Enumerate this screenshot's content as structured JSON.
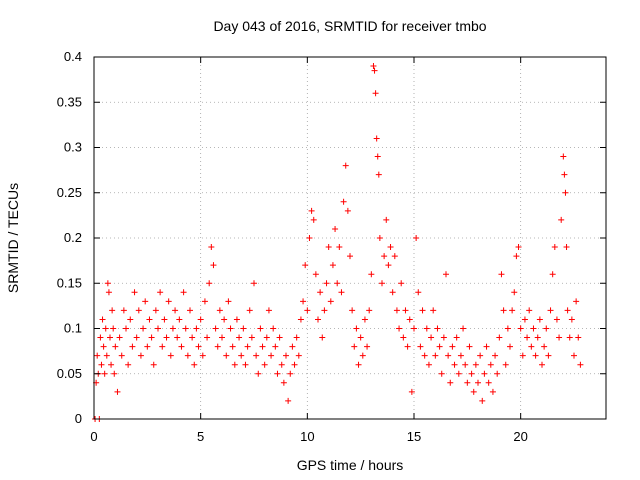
{
  "chart_data": {
    "type": "scatter",
    "title": "Day 043 of 2016, SRMTID for receiver tmbo",
    "xlabel": "GPS time / hours",
    "ylabel": "SRMTID / TECUs",
    "xlim": [
      0,
      24
    ],
    "ylim": [
      0,
      0.4
    ],
    "x_ticks": [
      0,
      5,
      10,
      15,
      20
    ],
    "x_tick_labels": [
      "0",
      "5",
      "10",
      "15",
      "20"
    ],
    "y_ticks": [
      0,
      0.05,
      0.1,
      0.15,
      0.2,
      0.25,
      0.3,
      0.35,
      0.4
    ],
    "y_tick_labels": [
      "0",
      "0.05",
      "0.1",
      "0.15",
      "0.2",
      "0.25",
      "0.3",
      "0.35",
      "0.4"
    ],
    "grid": true,
    "marker": "+",
    "color": "#ff0000",
    "series": [
      {
        "name": "SRMTID",
        "points": [
          [
            0.05,
            0.0
          ],
          [
            0.1,
            0.04
          ],
          [
            0.15,
            0.07
          ],
          [
            0.2,
            0.05
          ],
          [
            0.25,
            0.0
          ],
          [
            0.3,
            0.09
          ],
          [
            0.35,
            0.06
          ],
          [
            0.4,
            0.11
          ],
          [
            0.45,
            0.08
          ],
          [
            0.5,
            0.05
          ],
          [
            0.55,
            0.1
          ],
          [
            0.6,
            0.07
          ],
          [
            0.65,
            0.15
          ],
          [
            0.7,
            0.14
          ],
          [
            0.75,
            0.09
          ],
          [
            0.8,
            0.06
          ],
          [
            0.85,
            0.12
          ],
          [
            0.9,
            0.1
          ],
          [
            0.95,
            0.05
          ],
          [
            1.0,
            0.08
          ],
          [
            1.1,
            0.03
          ],
          [
            1.2,
            0.09
          ],
          [
            1.3,
            0.07
          ],
          [
            1.4,
            0.12
          ],
          [
            1.5,
            0.1
          ],
          [
            1.6,
            0.06
          ],
          [
            1.7,
            0.11
          ],
          [
            1.8,
            0.08
          ],
          [
            1.9,
            0.14
          ],
          [
            2.0,
            0.09
          ],
          [
            2.1,
            0.12
          ],
          [
            2.2,
            0.07
          ],
          [
            2.3,
            0.1
          ],
          [
            2.4,
            0.13
          ],
          [
            2.5,
            0.08
          ],
          [
            2.6,
            0.11
          ],
          [
            2.7,
            0.09
          ],
          [
            2.8,
            0.06
          ],
          [
            2.9,
            0.12
          ],
          [
            3.0,
            0.1
          ],
          [
            3.1,
            0.14
          ],
          [
            3.2,
            0.08
          ],
          [
            3.3,
            0.11
          ],
          [
            3.4,
            0.09
          ],
          [
            3.5,
            0.13
          ],
          [
            3.6,
            0.07
          ],
          [
            3.7,
            0.1
          ],
          [
            3.8,
            0.12
          ],
          [
            3.9,
            0.09
          ],
          [
            4.0,
            0.11
          ],
          [
            4.1,
            0.08
          ],
          [
            4.2,
            0.14
          ],
          [
            4.3,
            0.1
          ],
          [
            4.4,
            0.07
          ],
          [
            4.5,
            0.12
          ],
          [
            4.6,
            0.09
          ],
          [
            4.7,
            0.06
          ],
          [
            4.8,
            0.1
          ],
          [
            4.9,
            0.08
          ],
          [
            5.0,
            0.11
          ],
          [
            5.1,
            0.07
          ],
          [
            5.2,
            0.13
          ],
          [
            5.3,
            0.09
          ],
          [
            5.4,
            0.15
          ],
          [
            5.5,
            0.19
          ],
          [
            5.6,
            0.17
          ],
          [
            5.7,
            0.1
          ],
          [
            5.8,
            0.08
          ],
          [
            5.9,
            0.12
          ],
          [
            6.0,
            0.09
          ],
          [
            6.1,
            0.11
          ],
          [
            6.2,
            0.07
          ],
          [
            6.3,
            0.13
          ],
          [
            6.4,
            0.1
          ],
          [
            6.5,
            0.08
          ],
          [
            6.6,
            0.06
          ],
          [
            6.7,
            0.11
          ],
          [
            6.8,
            0.09
          ],
          [
            6.9,
            0.07
          ],
          [
            7.0,
            0.1
          ],
          [
            7.1,
            0.06
          ],
          [
            7.2,
            0.08
          ],
          [
            7.3,
            0.12
          ],
          [
            7.4,
            0.09
          ],
          [
            7.5,
            0.15
          ],
          [
            7.6,
            0.07
          ],
          [
            7.7,
            0.05
          ],
          [
            7.8,
            0.1
          ],
          [
            7.9,
            0.08
          ],
          [
            8.0,
            0.06
          ],
          [
            8.1,
            0.09
          ],
          [
            8.2,
            0.12
          ],
          [
            8.3,
            0.07
          ],
          [
            8.4,
            0.1
          ],
          [
            8.5,
            0.08
          ],
          [
            8.6,
            0.05
          ],
          [
            8.7,
            0.09
          ],
          [
            8.8,
            0.06
          ],
          [
            8.9,
            0.04
          ],
          [
            9.0,
            0.07
          ],
          [
            9.1,
            0.02
          ],
          [
            9.2,
            0.05
          ],
          [
            9.3,
            0.08
          ],
          [
            9.4,
            0.06
          ],
          [
            9.5,
            0.09
          ],
          [
            9.6,
            0.07
          ],
          [
            9.7,
            0.11
          ],
          [
            9.8,
            0.13
          ],
          [
            9.9,
            0.17
          ],
          [
            10.0,
            0.12
          ],
          [
            10.1,
            0.2
          ],
          [
            10.2,
            0.23
          ],
          [
            10.3,
            0.22
          ],
          [
            10.4,
            0.16
          ],
          [
            10.5,
            0.11
          ],
          [
            10.6,
            0.14
          ],
          [
            10.7,
            0.09
          ],
          [
            10.8,
            0.12
          ],
          [
            10.9,
            0.15
          ],
          [
            11.0,
            0.19
          ],
          [
            11.1,
            0.13
          ],
          [
            11.2,
            0.17
          ],
          [
            11.3,
            0.21
          ],
          [
            11.4,
            0.15
          ],
          [
            11.5,
            0.19
          ],
          [
            11.6,
            0.14
          ],
          [
            11.7,
            0.24
          ],
          [
            11.8,
            0.28
          ],
          [
            11.9,
            0.23
          ],
          [
            12.0,
            0.18
          ],
          [
            12.1,
            0.12
          ],
          [
            12.2,
            0.08
          ],
          [
            12.3,
            0.1
          ],
          [
            12.4,
            0.06
          ],
          [
            12.5,
            0.09
          ],
          [
            12.6,
            0.07
          ],
          [
            12.7,
            0.11
          ],
          [
            12.8,
            0.08
          ],
          [
            12.9,
            0.12
          ],
          [
            13.0,
            0.16
          ],
          [
            13.1,
            0.39
          ],
          [
            13.15,
            0.385
          ],
          [
            13.2,
            0.36
          ],
          [
            13.25,
            0.31
          ],
          [
            13.3,
            0.29
          ],
          [
            13.35,
            0.27
          ],
          [
            13.4,
            0.2
          ],
          [
            13.5,
            0.15
          ],
          [
            13.6,
            0.18
          ],
          [
            13.7,
            0.22
          ],
          [
            13.8,
            0.17
          ],
          [
            13.9,
            0.19
          ],
          [
            14.0,
            0.14
          ],
          [
            14.1,
            0.18
          ],
          [
            14.2,
            0.12
          ],
          [
            14.3,
            0.1
          ],
          [
            14.4,
            0.15
          ],
          [
            14.5,
            0.09
          ],
          [
            14.6,
            0.12
          ],
          [
            14.7,
            0.08
          ],
          [
            14.8,
            0.11
          ],
          [
            14.9,
            0.03
          ],
          [
            15.0,
            0.1
          ],
          [
            15.1,
            0.2
          ],
          [
            15.2,
            0.14
          ],
          [
            15.3,
            0.08
          ],
          [
            15.4,
            0.12
          ],
          [
            15.5,
            0.07
          ],
          [
            15.6,
            0.1
          ],
          [
            15.7,
            0.06
          ],
          [
            15.8,
            0.09
          ],
          [
            15.9,
            0.12
          ],
          [
            16.0,
            0.07
          ],
          [
            16.1,
            0.1
          ],
          [
            16.2,
            0.08
          ],
          [
            16.3,
            0.05
          ],
          [
            16.4,
            0.09
          ],
          [
            16.5,
            0.16
          ],
          [
            16.6,
            0.07
          ],
          [
            16.7,
            0.04
          ],
          [
            16.8,
            0.08
          ],
          [
            16.9,
            0.06
          ],
          [
            17.0,
            0.09
          ],
          [
            17.1,
            0.05
          ],
          [
            17.2,
            0.07
          ],
          [
            17.3,
            0.1
          ],
          [
            17.4,
            0.06
          ],
          [
            17.5,
            0.04
          ],
          [
            17.6,
            0.08
          ],
          [
            17.7,
            0.05
          ],
          [
            17.8,
            0.03
          ],
          [
            17.9,
            0.06
          ],
          [
            18.0,
            0.04
          ],
          [
            18.1,
            0.07
          ],
          [
            18.2,
            0.02
          ],
          [
            18.3,
            0.05
          ],
          [
            18.4,
            0.08
          ],
          [
            18.5,
            0.04
          ],
          [
            18.6,
            0.06
          ],
          [
            18.7,
            0.03
          ],
          [
            18.8,
            0.07
          ],
          [
            18.9,
            0.05
          ],
          [
            19.0,
            0.09
          ],
          [
            19.1,
            0.16
          ],
          [
            19.2,
            0.12
          ],
          [
            19.3,
            0.06
          ],
          [
            19.4,
            0.1
          ],
          [
            19.5,
            0.08
          ],
          [
            19.6,
            0.12
          ],
          [
            19.7,
            0.14
          ],
          [
            19.8,
            0.18
          ],
          [
            19.9,
            0.19
          ],
          [
            20.0,
            0.1
          ],
          [
            20.1,
            0.07
          ],
          [
            20.2,
            0.11
          ],
          [
            20.3,
            0.09
          ],
          [
            20.4,
            0.12
          ],
          [
            20.5,
            0.08
          ],
          [
            20.6,
            0.1
          ],
          [
            20.7,
            0.07
          ],
          [
            20.8,
            0.09
          ],
          [
            20.9,
            0.11
          ],
          [
            21.0,
            0.06
          ],
          [
            21.1,
            0.08
          ],
          [
            21.2,
            0.1
          ],
          [
            21.3,
            0.07
          ],
          [
            21.4,
            0.12
          ],
          [
            21.5,
            0.16
          ],
          [
            21.6,
            0.19
          ],
          [
            21.7,
            0.11
          ],
          [
            21.8,
            0.09
          ],
          [
            21.9,
            0.22
          ],
          [
            22.0,
            0.29
          ],
          [
            22.05,
            0.27
          ],
          [
            22.1,
            0.25
          ],
          [
            22.15,
            0.19
          ],
          [
            22.2,
            0.12
          ],
          [
            22.3,
            0.09
          ],
          [
            22.4,
            0.11
          ],
          [
            22.5,
            0.07
          ],
          [
            22.6,
            0.13
          ],
          [
            22.7,
            0.09
          ],
          [
            22.8,
            0.06
          ]
        ]
      }
    ]
  }
}
